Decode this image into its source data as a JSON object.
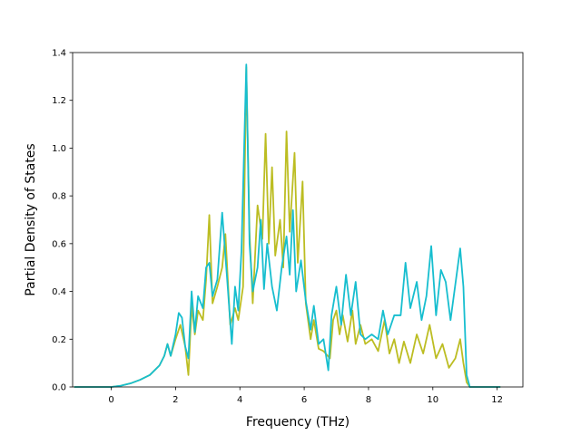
{
  "chart_data": {
    "type": "line",
    "title": "",
    "xlabel": "Frequency (THz)",
    "ylabel": "Partial Density of States",
    "xlim": [
      -1.2,
      12.8
    ],
    "ylim": [
      0.0,
      1.4
    ],
    "xticks": [
      0,
      2,
      4,
      6,
      8,
      10,
      12
    ],
    "yticks": [
      0.0,
      0.2,
      0.4,
      0.6,
      0.8,
      1.0,
      1.2,
      1.4
    ],
    "grid": false,
    "legend": "none",
    "series": [
      {
        "color": "#bcbd22",
        "points": [
          [
            -1.15,
            0.0
          ],
          [
            0.0,
            0.0
          ],
          [
            0.3,
            0.005
          ],
          [
            0.6,
            0.015
          ],
          [
            0.9,
            0.03
          ],
          [
            1.2,
            0.05
          ],
          [
            1.5,
            0.09
          ],
          [
            1.65,
            0.13
          ],
          [
            1.75,
            0.18
          ],
          [
            1.85,
            0.13
          ],
          [
            2.0,
            0.2
          ],
          [
            2.15,
            0.26
          ],
          [
            2.3,
            0.17
          ],
          [
            2.4,
            0.05
          ],
          [
            2.5,
            0.34
          ],
          [
            2.6,
            0.22
          ],
          [
            2.7,
            0.32
          ],
          [
            2.85,
            0.28
          ],
          [
            2.95,
            0.45
          ],
          [
            3.05,
            0.72
          ],
          [
            3.15,
            0.35
          ],
          [
            3.3,
            0.42
          ],
          [
            3.45,
            0.5
          ],
          [
            3.55,
            0.64
          ],
          [
            3.7,
            0.26
          ],
          [
            3.85,
            0.33
          ],
          [
            3.95,
            0.28
          ],
          [
            4.1,
            0.42
          ],
          [
            4.2,
            1.34
          ],
          [
            4.3,
            0.65
          ],
          [
            4.4,
            0.35
          ],
          [
            4.55,
            0.76
          ],
          [
            4.7,
            0.62
          ],
          [
            4.8,
            1.06
          ],
          [
            4.9,
            0.6
          ],
          [
            5.0,
            0.92
          ],
          [
            5.1,
            0.55
          ],
          [
            5.25,
            0.7
          ],
          [
            5.35,
            0.5
          ],
          [
            5.45,
            1.07
          ],
          [
            5.55,
            0.65
          ],
          [
            5.7,
            0.98
          ],
          [
            5.8,
            0.52
          ],
          [
            5.95,
            0.86
          ],
          [
            6.05,
            0.35
          ],
          [
            6.2,
            0.2
          ],
          [
            6.3,
            0.28
          ],
          [
            6.45,
            0.16
          ],
          [
            6.6,
            0.15
          ],
          [
            6.8,
            0.12
          ],
          [
            6.9,
            0.28
          ],
          [
            7.0,
            0.32
          ],
          [
            7.1,
            0.22
          ],
          [
            7.2,
            0.3
          ],
          [
            7.35,
            0.19
          ],
          [
            7.5,
            0.32
          ],
          [
            7.6,
            0.18
          ],
          [
            7.75,
            0.26
          ],
          [
            7.9,
            0.18
          ],
          [
            8.1,
            0.2
          ],
          [
            8.3,
            0.15
          ],
          [
            8.5,
            0.28
          ],
          [
            8.65,
            0.14
          ],
          [
            8.8,
            0.2
          ],
          [
            8.95,
            0.1
          ],
          [
            9.1,
            0.19
          ],
          [
            9.3,
            0.1
          ],
          [
            9.5,
            0.22
          ],
          [
            9.7,
            0.14
          ],
          [
            9.9,
            0.26
          ],
          [
            10.1,
            0.12
          ],
          [
            10.3,
            0.18
          ],
          [
            10.5,
            0.08
          ],
          [
            10.7,
            0.12
          ],
          [
            10.85,
            0.2
          ],
          [
            10.95,
            0.1
          ],
          [
            11.05,
            0.02
          ],
          [
            11.15,
            0.0
          ],
          [
            12.1,
            0.0
          ]
        ]
      },
      {
        "color": "#17becf",
        "points": [
          [
            -1.15,
            0.0
          ],
          [
            0.0,
            0.0
          ],
          [
            0.3,
            0.005
          ],
          [
            0.6,
            0.015
          ],
          [
            0.9,
            0.03
          ],
          [
            1.2,
            0.05
          ],
          [
            1.5,
            0.09
          ],
          [
            1.65,
            0.13
          ],
          [
            1.75,
            0.18
          ],
          [
            1.85,
            0.13
          ],
          [
            2.0,
            0.22
          ],
          [
            2.1,
            0.31
          ],
          [
            2.2,
            0.29
          ],
          [
            2.3,
            0.17
          ],
          [
            2.4,
            0.12
          ],
          [
            2.5,
            0.4
          ],
          [
            2.6,
            0.23
          ],
          [
            2.7,
            0.38
          ],
          [
            2.85,
            0.33
          ],
          [
            2.95,
            0.5
          ],
          [
            3.05,
            0.52
          ],
          [
            3.15,
            0.38
          ],
          [
            3.3,
            0.45
          ],
          [
            3.45,
            0.73
          ],
          [
            3.6,
            0.46
          ],
          [
            3.75,
            0.18
          ],
          [
            3.85,
            0.42
          ],
          [
            3.95,
            0.32
          ],
          [
            4.05,
            0.57
          ],
          [
            4.2,
            1.35
          ],
          [
            4.3,
            0.6
          ],
          [
            4.4,
            0.4
          ],
          [
            4.55,
            0.5
          ],
          [
            4.65,
            0.7
          ],
          [
            4.75,
            0.41
          ],
          [
            4.85,
            0.6
          ],
          [
            5.0,
            0.42
          ],
          [
            5.15,
            0.32
          ],
          [
            5.3,
            0.5
          ],
          [
            5.45,
            0.63
          ],
          [
            5.55,
            0.47
          ],
          [
            5.65,
            0.74
          ],
          [
            5.75,
            0.4
          ],
          [
            5.9,
            0.53
          ],
          [
            6.05,
            0.36
          ],
          [
            6.2,
            0.24
          ],
          [
            6.3,
            0.34
          ],
          [
            6.45,
            0.18
          ],
          [
            6.6,
            0.2
          ],
          [
            6.75,
            0.07
          ],
          [
            6.85,
            0.3
          ],
          [
            7.0,
            0.42
          ],
          [
            7.15,
            0.26
          ],
          [
            7.3,
            0.47
          ],
          [
            7.45,
            0.3
          ],
          [
            7.6,
            0.44
          ],
          [
            7.75,
            0.22
          ],
          [
            7.9,
            0.2
          ],
          [
            8.1,
            0.22
          ],
          [
            8.3,
            0.2
          ],
          [
            8.45,
            0.32
          ],
          [
            8.6,
            0.22
          ],
          [
            8.8,
            0.3
          ],
          [
            9.0,
            0.3
          ],
          [
            9.15,
            0.52
          ],
          [
            9.3,
            0.33
          ],
          [
            9.5,
            0.44
          ],
          [
            9.65,
            0.28
          ],
          [
            9.8,
            0.38
          ],
          [
            9.95,
            0.59
          ],
          [
            10.1,
            0.3
          ],
          [
            10.25,
            0.49
          ],
          [
            10.4,
            0.44
          ],
          [
            10.55,
            0.28
          ],
          [
            10.7,
            0.43
          ],
          [
            10.85,
            0.58
          ],
          [
            10.95,
            0.42
          ],
          [
            11.05,
            0.05
          ],
          [
            11.15,
            0.0
          ],
          [
            12.1,
            0.0
          ]
        ]
      }
    ]
  }
}
